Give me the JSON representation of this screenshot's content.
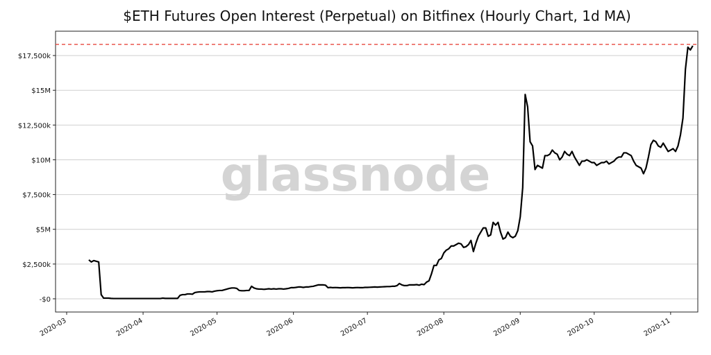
{
  "chart_data": {
    "type": "line",
    "title": "$ETH Futures Open Interest (Perpetual) on Bitfinex (Hourly Chart, 1d MA)",
    "watermark": "glassnode",
    "categories": [
      "2020-03",
      null,
      null,
      null,
      null,
      null,
      null,
      null,
      null,
      null,
      null,
      null,
      null,
      null,
      null,
      null,
      null,
      null,
      null,
      null,
      null,
      null,
      null,
      null,
      null,
      null,
      null,
      null,
      null,
      null,
      null,
      "2020-04",
      null,
      null,
      null,
      null,
      null,
      null,
      null,
      null,
      null,
      null,
      null,
      null,
      null,
      null,
      null,
      null,
      null,
      null,
      null,
      null,
      null,
      null,
      null,
      null,
      null,
      null,
      null,
      null,
      null,
      "2020-05",
      null,
      null,
      null,
      null,
      null,
      null,
      null,
      null,
      null,
      null,
      null,
      null,
      null,
      null,
      null,
      null,
      null,
      null,
      null,
      null,
      null,
      null,
      null,
      null,
      null,
      null,
      null,
      null,
      null,
      null,
      "2020-06",
      null,
      null,
      null,
      null,
      null,
      null,
      null,
      null,
      null,
      null,
      null,
      null,
      null,
      null,
      null,
      null,
      null,
      null,
      null,
      null,
      null,
      null,
      null,
      null,
      null,
      null,
      null,
      null,
      null,
      "2020-07",
      null,
      null,
      null,
      null,
      null,
      null,
      null,
      null,
      null,
      null,
      null,
      null,
      null,
      null,
      null,
      null,
      null,
      null,
      null,
      null,
      null,
      null,
      null,
      null,
      null,
      null,
      null,
      null,
      null,
      null,
      "2020-08",
      null,
      null,
      null,
      null,
      null,
      null,
      null,
      null,
      null,
      null,
      null,
      null,
      null,
      null,
      null,
      null,
      null,
      null,
      null,
      null,
      null,
      null,
      null,
      null,
      null,
      null,
      null,
      null,
      null,
      null,
      "2020-09",
      null,
      null,
      null,
      null,
      null,
      null,
      null,
      null,
      null,
      null,
      null,
      null,
      null,
      null,
      null,
      null,
      null,
      null,
      null,
      null,
      null,
      null,
      null,
      null,
      null,
      null,
      null,
      null,
      null,
      "2020-10",
      null,
      null,
      null,
      null,
      null,
      null,
      null,
      null,
      null,
      null,
      null,
      null,
      null,
      null,
      null,
      null,
      null,
      null,
      null,
      null,
      null,
      null,
      null,
      null,
      null,
      null,
      null,
      null,
      null,
      null,
      "2020-11",
      null,
      null,
      null,
      null,
      null,
      null,
      null,
      null,
      null
    ],
    "series": [
      {
        "name": "Open Interest",
        "color": "#000000",
        "values": [
          null,
          null,
          null,
          null,
          null,
          null,
          null,
          null,
          null,
          2800000,
          2650000,
          2750000,
          2700000,
          2650000,
          300000,
          50000,
          50000,
          50000,
          30000,
          20000,
          20000,
          20000,
          20000,
          20000,
          20000,
          20000,
          20000,
          20000,
          20000,
          20000,
          20000,
          20000,
          20000,
          20000,
          20000,
          20000,
          20000,
          20000,
          20000,
          50000,
          30000,
          30000,
          30000,
          30000,
          30000,
          30000,
          250000,
          300000,
          300000,
          350000,
          350000,
          330000,
          450000,
          480000,
          500000,
          500000,
          500000,
          520000,
          520000,
          500000,
          550000,
          580000,
          600000,
          600000,
          650000,
          700000,
          750000,
          780000,
          780000,
          750000,
          600000,
          580000,
          580000,
          600000,
          600000,
          900000,
          780000,
          720000,
          700000,
          700000,
          680000,
          700000,
          720000,
          700000,
          720000,
          700000,
          720000,
          720000,
          700000,
          720000,
          750000,
          800000,
          800000,
          820000,
          850000,
          850000,
          820000,
          850000,
          850000,
          880000,
          900000,
          950000,
          1000000,
          1000000,
          1000000,
          980000,
          800000,
          820000,
          800000,
          810000,
          800000,
          790000,
          800000,
          800000,
          810000,
          800000,
          790000,
          800000,
          810000,
          800000,
          800000,
          820000,
          820000,
          830000,
          840000,
          850000,
          840000,
          850000,
          860000,
          870000,
          880000,
          880000,
          900000,
          900000,
          950000,
          1100000,
          1000000,
          950000,
          950000,
          1000000,
          1000000,
          1000000,
          1020000,
          980000,
          1050000,
          1020000,
          1200000,
          1300000,
          1800000,
          2400000,
          2400000,
          2800000,
          2900000,
          3300000,
          3500000,
          3600000,
          3800000,
          3800000,
          3900000,
          4000000,
          3950000,
          3700000,
          3750000,
          3900000,
          4200000,
          3400000,
          4000000,
          4500000,
          4800000,
          5100000,
          5100000,
          4500000,
          4600000,
          5500000,
          5300000,
          5500000,
          4800000,
          4300000,
          4400000,
          4800000,
          4500000,
          4400000,
          4500000,
          4900000,
          5900000,
          8000000,
          14700000,
          13800000,
          11300000,
          11000000,
          9300000,
          9600000,
          9500000,
          9400000,
          10300000,
          10300000,
          10400000,
          10700000,
          10500000,
          10400000,
          10000000,
          10200000,
          10600000,
          10400000,
          10300000,
          10600000,
          10200000,
          9900000,
          9600000,
          9900000,
          9900000,
          10000000,
          9900000,
          9800000,
          9800000,
          9600000,
          9700000,
          9800000,
          9800000,
          9900000,
          9700000,
          9800000,
          9900000,
          10100000,
          10200000,
          10200000,
          10500000,
          10500000,
          10400000,
          10300000,
          9900000,
          9600000,
          9500000,
          9400000,
          9000000,
          9400000,
          10200000,
          11100000,
          11400000,
          11300000,
          11000000,
          10900000,
          11200000,
          10900000,
          10600000,
          10700000,
          10800000,
          10600000,
          11000000,
          11800000,
          13000000,
          16500000,
          18100000,
          17900000,
          18200000
        ]
      }
    ],
    "ylim": [
      -950000,
      19250000
    ],
    "yticks": [
      {
        "value": 0,
        "label": "-$0"
      },
      {
        "value": 2500000,
        "label": "$2,500k"
      },
      {
        "value": 5000000,
        "label": "$5M"
      },
      {
        "value": 7500000,
        "label": "$7,500k"
      },
      {
        "value": 10000000,
        "label": "$10M"
      },
      {
        "value": 12500000,
        "label": "$12,500k"
      },
      {
        "value": 15000000,
        "label": "$15M"
      },
      {
        "value": 17500000,
        "label": "$17,500k"
      }
    ],
    "grid": true,
    "reference_line": {
      "value": 18300000,
      "color": "#e8473f"
    }
  }
}
